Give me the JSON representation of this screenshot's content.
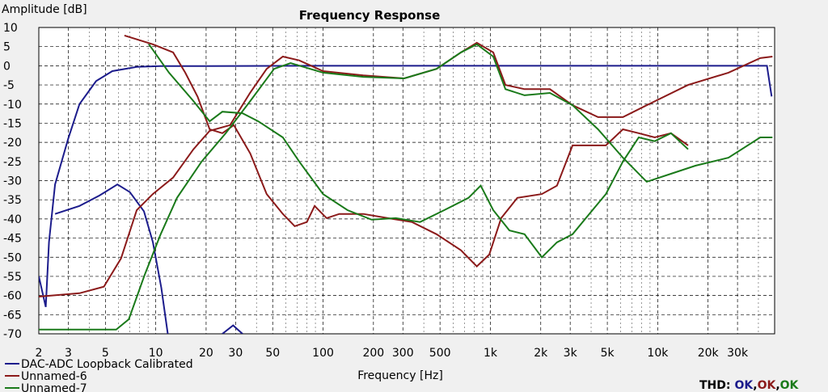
{
  "chart_data": {
    "type": "line",
    "title": "Frequency Response",
    "x_label": "Frequency [Hz]",
    "y_label": "Amplitude [dB]",
    "xscale": "log",
    "xlim": [
      2,
      50000
    ],
    "ylim": [
      -70,
      10
    ],
    "grid": true,
    "xticks": [
      2,
      3,
      5,
      10,
      20,
      30,
      50,
      100,
      200,
      300,
      500,
      {
        "value": 1000,
        "label": "1k"
      },
      {
        "value": 2000,
        "label": "2k"
      },
      {
        "value": 3000,
        "label": "3k"
      },
      {
        "value": 5000,
        "label": "5k"
      },
      {
        "value": 10000,
        "label": "10k"
      },
      {
        "value": 20000,
        "label": "20k"
      },
      {
        "value": 30000,
        "label": "30k"
      }
    ],
    "xminor": [
      4,
      6,
      7,
      8,
      9,
      40,
      60,
      70,
      80,
      90,
      400,
      600,
      700,
      800,
      900,
      4000,
      6000,
      7000,
      8000,
      9000,
      40000
    ],
    "yticks": [
      10,
      5,
      0,
      -5,
      -10,
      -15,
      -20,
      -25,
      -30,
      -35,
      -40,
      -45,
      -50,
      -55,
      -60,
      -65,
      -70
    ],
    "series": [
      {
        "name": "DAC-ADC Loopback Calibrated",
        "color": "#1c1c8c",
        "x": [
          2,
          2.2,
          2.3,
          2.5,
          3,
          3.5,
          4.4,
          5.5,
          7.7,
          10.7,
          100,
          1000,
          10000,
          45000,
          48000
        ],
        "values": [
          -55,
          -63,
          -46,
          -31,
          -19,
          -10,
          -4,
          -1.4,
          -0.3,
          -0.1,
          0,
          0,
          0,
          0,
          -8
        ],
        "distortion": {
          "x": [
            2.5,
            3.5,
            4.6,
            5.9,
            7,
            8.5,
            9.6,
            10.8,
            11.8,
            18,
            25,
            29,
            33
          ],
          "values": [
            -38.7,
            -36.6,
            -33.9,
            -31,
            -33,
            -38,
            -46,
            -58,
            -70,
            null,
            -70,
            -67.8,
            -70
          ]
        }
      },
      {
        "name": "Unnamed-6",
        "color": "#8b1a1a",
        "x": [
          6.5,
          9.6,
          12.7,
          15,
          17.8,
          21,
          25,
          29.3,
          36.7,
          46,
          57.5,
          67.7,
          80,
          89,
          105,
          125,
          174,
          244,
          340,
          477,
          667,
          830,
          985,
          1160,
          1450,
          2030,
          2500,
          3100,
          3900,
          4900,
          6200,
          7700,
          9600,
          12000,
          15200
        ],
        "values": [
          7.9,
          5.6,
          3.5,
          -1.8,
          -8.1,
          -16.6,
          -17.6,
          -15.5,
          -22.9,
          -33.5,
          -38.7,
          -41.9,
          -40.8,
          -36.6,
          -39.8,
          -38.7,
          -38.7,
          -39.8,
          -40.8,
          -44,
          -48.2,
          -52.4,
          -49.3,
          -39.8,
          -34.5,
          -33.5,
          -31.3,
          -20.8,
          -20.8,
          -20.8,
          -16.6,
          -17.6,
          -18.7,
          -17.6,
          -20.8
        ],
        "distortion": {
          "x": [
            2,
            3.5,
            4.9,
            6.2,
            7.7,
            9.6,
            12.7,
            16.8,
            21,
            27.8,
            36.7,
            46,
            57.5,
            72,
            100,
            174,
            305,
            477,
            667,
            830,
            1040,
            1230,
            1600,
            2270,
            3100,
            4400,
            6200,
            8600,
            15200,
            26500,
            41000,
            48500
          ],
          "values": [
            -60.3,
            -59.4,
            -57.7,
            -50.3,
            -37.7,
            -33.5,
            -29.2,
            -21.8,
            -17,
            -15.5,
            -7,
            -0.8,
            2.4,
            1.4,
            -1.4,
            -2.5,
            -3.3,
            -0.8,
            3.5,
            6,
            3.5,
            -5,
            -6.1,
            -6.1,
            -10.3,
            -13.4,
            -13.4,
            -10.3,
            -5,
            -1.8,
            2,
            2.4
          ]
        }
      },
      {
        "name": "Unnamed-7",
        "color": "#1a7a1a",
        "x": [
          9.1,
          12,
          16.8,
          21,
          25,
          33,
          41,
          57.5,
          72,
          100,
          140,
          195,
          272,
          380,
          530,
          740,
          875,
          1040,
          1300,
          1600,
          2030,
          2500,
          3100,
          3900,
          4900,
          6200,
          7700,
          9600,
          12000,
          15200
        ],
        "values": [
          5.6,
          -1.8,
          -9.2,
          -14.5,
          -12,
          -12.4,
          -14.5,
          -18.7,
          -25,
          -33.5,
          -37.7,
          -40.2,
          -39.8,
          -40.8,
          -37.7,
          -34.5,
          -31.3,
          -37.7,
          -43,
          -44,
          -50,
          -46.1,
          -44,
          -38.7,
          -33.5,
          -25,
          -18.7,
          -19.7,
          -17.6,
          -21.8
        ],
        "distortion": {
          "x": [
            2,
            3.5,
            5.8,
            6.9,
            8.6,
            10.7,
            13.4,
            18.8,
            26.2,
            36.7,
            51,
            64,
            100,
            174,
            305,
            477,
            667,
            830,
            1040,
            1230,
            1600,
            2270,
            3100,
            4400,
            6200,
            8600,
            12000,
            16800,
            26500,
            41000,
            48500
          ],
          "values": [
            -68.9,
            -68.9,
            -68.9,
            -66.2,
            -54.5,
            -44,
            -34.5,
            -25,
            -17.6,
            -9.2,
            -0.8,
            0.7,
            -1.8,
            -2.9,
            -3.3,
            -0.8,
            3.5,
            5.6,
            2.4,
            -6.1,
            -7.7,
            -7.1,
            -10.3,
            -16.6,
            -24,
            -30.3,
            -28.2,
            -26.1,
            -24,
            -18.7,
            -18.7
          ]
        }
      }
    ],
    "thd": {
      "label": "THD:",
      "separator": ",",
      "status": [
        {
          "text": "OK",
          "color": "#1c1c8c"
        },
        {
          "text": "OK",
          "color": "#8b1a1a"
        },
        {
          "text": "OK",
          "color": "#1a7a1a"
        }
      ]
    }
  }
}
